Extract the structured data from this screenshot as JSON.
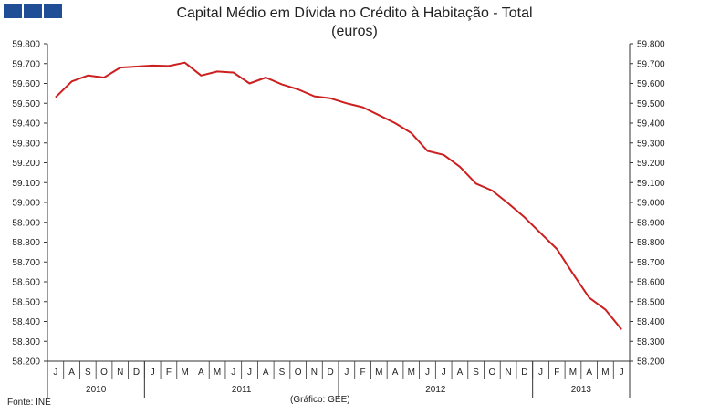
{
  "colors": {
    "line": "#cc1f1f",
    "logo": "#1f4e96",
    "axis": "#333333"
  },
  "logo": {
    "blocks": 3
  },
  "footer": {
    "source": "Fonte: INE",
    "credit": "(Gráfico: GEE)"
  },
  "chart_data": {
    "type": "line",
    "title": "Capital Médio em Dívida no Crédito à Habitação - Total",
    "subtitle": "(euros)",
    "ylim": [
      58200,
      59800
    ],
    "ystep": 100,
    "ytick_labels": [
      "58.200",
      "58.300",
      "58.400",
      "58.500",
      "58.600",
      "58.700",
      "58.800",
      "58.900",
      "59.000",
      "59.100",
      "59.200",
      "59.300",
      "59.400",
      "59.500",
      "59.600",
      "59.700",
      "59.800"
    ],
    "categories": [
      "J",
      "A",
      "S",
      "O",
      "N",
      "D",
      "J",
      "F",
      "M",
      "A",
      "M",
      "J",
      "J",
      "A",
      "S",
      "O",
      "N",
      "D",
      "J",
      "F",
      "M",
      "A",
      "M",
      "J",
      "J",
      "A",
      "S",
      "O",
      "N",
      "D",
      "J",
      "F",
      "M",
      "A",
      "M",
      "J"
    ],
    "years": [
      {
        "label": "2010",
        "months": 6
      },
      {
        "label": "2011",
        "months": 12
      },
      {
        "label": "2012",
        "months": 12
      },
      {
        "label": "2013",
        "months": 6
      }
    ],
    "series": [
      {
        "name": "Total",
        "values": [
          59530,
          59610,
          59640,
          59630,
          59680,
          59685,
          59690,
          59688,
          59705,
          59640,
          59660,
          59655,
          59600,
          59630,
          59595,
          59570,
          59535,
          59525,
          59500,
          59480,
          59440,
          59400,
          59350,
          59260,
          59240,
          59180,
          59095,
          59060,
          58995,
          58925,
          58845,
          58765,
          58640,
          58520,
          58460,
          58360
        ]
      }
    ]
  }
}
